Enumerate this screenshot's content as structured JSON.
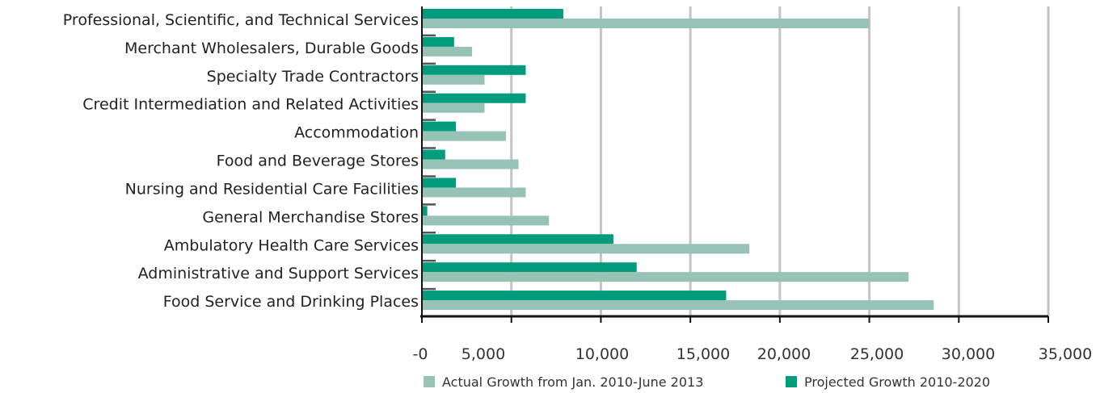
{
  "chart_data": {
    "type": "bar",
    "orientation": "horizontal",
    "title": "",
    "xlabel": "",
    "ylabel": "",
    "categories": [
      "Professional, Scientific, and Technical Services",
      "Merchant Wholesalers, Durable Goods",
      "Specialty Trade Contractors",
      "Credit Intermediation and Related Activities",
      "Accommodation",
      "Food and Beverage Stores",
      "Nursing and Residential Care Facilities",
      "General Merchandise Stores",
      "Ambulatory Health Care Services",
      "Administrative and Support Services",
      "Food Service and Drinking Places"
    ],
    "series": [
      {
        "name": "Projected Growth 2010-2020",
        "color": "#009c7c",
        "values": [
          7900,
          1800,
          5800,
          5800,
          1900,
          1300,
          1900,
          300,
          10700,
          12000,
          17000
        ]
      },
      {
        "name": "Actual Growth from Jan. 2010-June 2013",
        "color": "#96c3b5",
        "values": [
          25000,
          2800,
          3500,
          3500,
          4700,
          5400,
          5800,
          7100,
          18300,
          27200,
          28600
        ]
      }
    ],
    "tick_labels": [
      "-0",
      "5,000",
      "10,000",
      "15,000",
      "20,000",
      "25,000",
      "30,000",
      "35,000"
    ],
    "xlim": [
      0,
      35000
    ],
    "grid": "vertical",
    "legend_position": "bottom",
    "legend": [
      {
        "label": "Actual Growth from Jan. 2010-June 2013",
        "color": "#96c3b5"
      },
      {
        "label": "Projected Growth 2010-2020",
        "color": "#009c7c"
      }
    ]
  }
}
